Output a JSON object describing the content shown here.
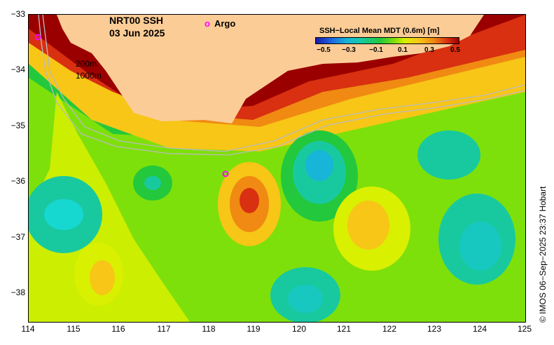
{
  "title": {
    "product": "NRT00 SSH",
    "date": "03 Jun 2025"
  },
  "legend": {
    "argo_symbol": "o",
    "argo_label": "Argo",
    "argo_color": "#ff00ff"
  },
  "colorbar": {
    "title": "SSH−Local Mean MDT (0.6m) [m]",
    "ticks": [
      "−0.5",
      "−0.3",
      "−0.1",
      "0.1",
      "0.3",
      "0.5"
    ],
    "colors": [
      "#1a1aa8",
      "#17b5d8",
      "#23c83c",
      "#7ee00a",
      "#d9f000",
      "#f7c617",
      "#f08a12",
      "#d83010",
      "#9a0000"
    ]
  },
  "isobaths": {
    "shallow": "200m",
    "deep": "1000m"
  },
  "axes": {
    "x_ticks": [
      "114",
      "115",
      "116",
      "117",
      "118",
      "119",
      "120",
      "121",
      "122",
      "123",
      "124",
      "125"
    ],
    "y_ticks": [
      "−33",
      "−34",
      "−35",
      "−36",
      "−37",
      "−38"
    ],
    "xlim": [
      114,
      125
    ],
    "ylim": [
      -38.5,
      -33
    ]
  },
  "land_color": "#fccc96",
  "credit": "© IMOS 06−Sep−2025 23:37 Hobart",
  "argo_floats": [
    {
      "lon": 114.2,
      "lat": -33.4
    },
    {
      "lon": 118.4,
      "lat": -35.85
    }
  ]
}
